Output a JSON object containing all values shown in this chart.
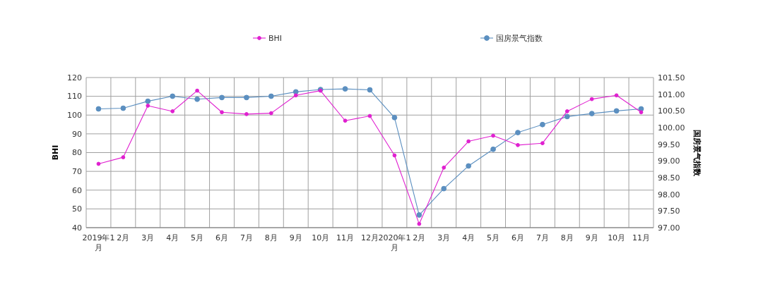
{
  "chart_data": {
    "type": "line",
    "categories": [
      "2019年1月",
      "2月",
      "3月",
      "4月",
      "5月",
      "6月",
      "7月",
      "8月",
      "9月",
      "10月",
      "11月",
      "12月",
      "2020年1月",
      "2月",
      "3月",
      "4月",
      "5月",
      "6月",
      "7月",
      "8月",
      "9月",
      "10月",
      "11月"
    ],
    "series": [
      {
        "name": "BHI",
        "color": "#e020d0",
        "values": [
          74,
          77.5,
          105,
          102,
          113,
          101.5,
          100.5,
          101,
          110.5,
          113,
          97,
          99.5,
          78.5,
          42,
          72,
          86,
          89,
          84,
          85,
          102,
          108.5,
          110.5,
          101.5
        ]
      },
      {
        "name": "国房景气指数",
        "color": "#5b8fc0",
        "axis": "y2",
        "values": [
          100.56,
          100.58,
          100.79,
          100.94,
          100.85,
          100.9,
          100.9,
          100.94,
          101.07,
          101.14,
          101.16,
          101.13,
          100.3,
          97.38,
          98.17,
          98.85,
          99.35,
          99.85,
          100.09,
          100.33,
          100.42,
          100.5,
          100.56
        ]
      }
    ],
    "ylabel": "BHI",
    "y2label": "国房景气指数",
    "ylim": [
      40,
      120
    ],
    "yticks": [
      40,
      50,
      60,
      70,
      80,
      90,
      100,
      110,
      120
    ],
    "y2lim": [
      97,
      101.5
    ],
    "y2ticks": [
      {
        "value": 97,
        "label": "97.00"
      },
      {
        "value": 97.5,
        "label": "97.50"
      },
      {
        "value": 98,
        "label": "98.00"
      },
      {
        "value": 98.5,
        "label": "98.50"
      },
      {
        "value": 99,
        "label": "99.00"
      },
      {
        "value": 99.5,
        "label": "99.50"
      },
      {
        "value": 100,
        "label": "100.00"
      },
      {
        "value": 100.5,
        "label": "100.50"
      },
      {
        "value": 101,
        "label": "101.00"
      },
      {
        "value": 101.5,
        "label": "101.50"
      }
    ],
    "grid": true,
    "legend": "top",
    "marker": "circle",
    "line_style": "solid"
  }
}
